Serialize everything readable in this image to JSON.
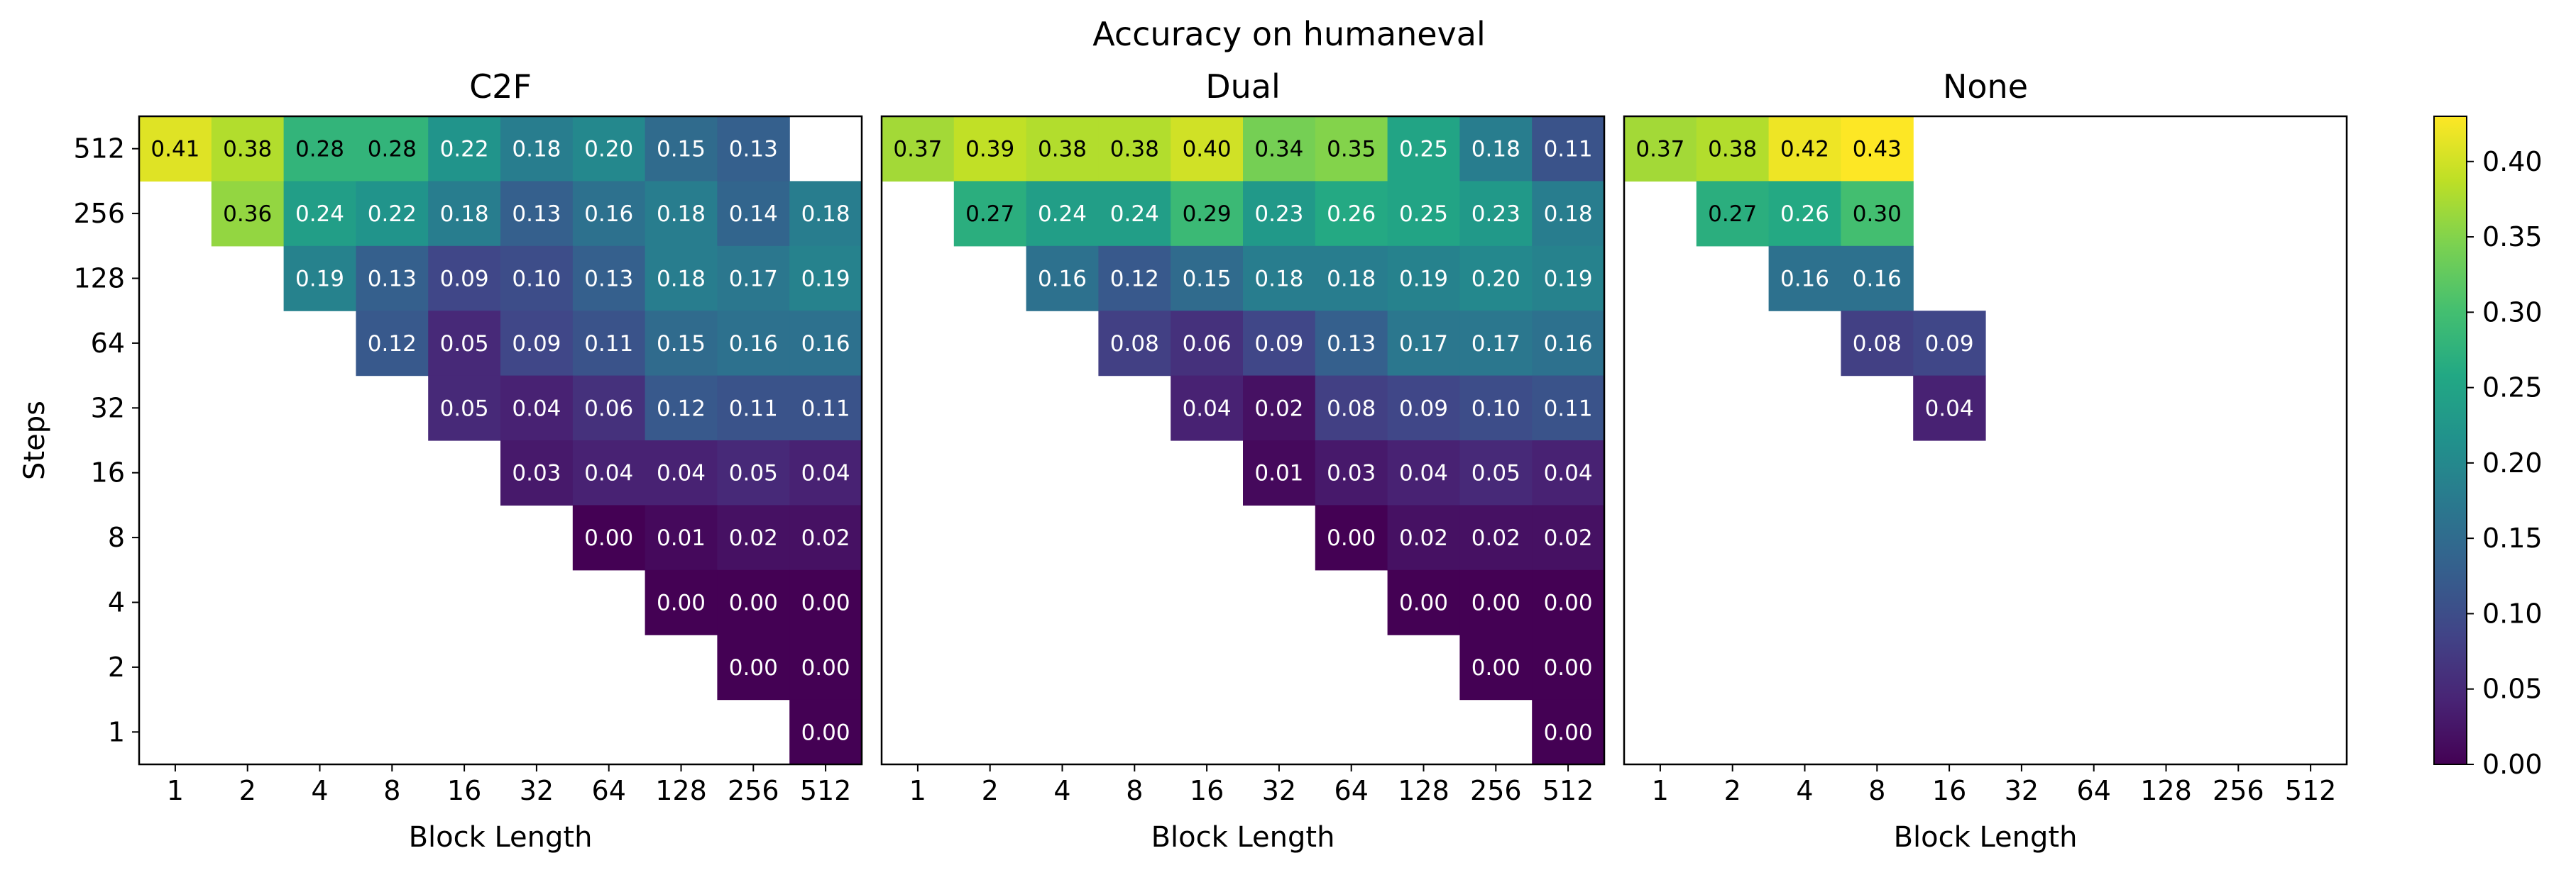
{
  "figure": {
    "title": "Accuracy on humaneval"
  },
  "chart_data": [
    {
      "type": "heatmap",
      "title": "C2F",
      "xlabel": "Block Length",
      "ylabel": "Steps",
      "x_categories": [
        "1",
        "2",
        "4",
        "8",
        "16",
        "32",
        "64",
        "128",
        "256",
        "512"
      ],
      "y_categories": [
        "512",
        "256",
        "128",
        "64",
        "32",
        "16",
        "8",
        "4",
        "2",
        "1"
      ],
      "values": [
        [
          0.41,
          0.38,
          0.28,
          0.28,
          0.22,
          0.18,
          0.2,
          0.15,
          0.13,
          null
        ],
        [
          null,
          0.36,
          0.24,
          0.22,
          0.18,
          0.13,
          0.16,
          0.18,
          0.14,
          0.18
        ],
        [
          null,
          null,
          0.19,
          0.13,
          0.09,
          0.1,
          0.13,
          0.18,
          0.17,
          0.19
        ],
        [
          null,
          null,
          null,
          0.12,
          0.05,
          0.09,
          0.11,
          0.15,
          0.16,
          0.16
        ],
        [
          null,
          null,
          null,
          null,
          0.05,
          0.04,
          0.06,
          0.12,
          0.11,
          0.11
        ],
        [
          null,
          null,
          null,
          null,
          null,
          0.03,
          0.04,
          0.04,
          0.05,
          0.04
        ],
        [
          null,
          null,
          null,
          null,
          null,
          null,
          0.0,
          0.01,
          0.02,
          0.02
        ],
        [
          null,
          null,
          null,
          null,
          null,
          null,
          null,
          0.0,
          0.0,
          0.0
        ],
        [
          null,
          null,
          null,
          null,
          null,
          null,
          null,
          null,
          0.0,
          0.0
        ],
        [
          null,
          null,
          null,
          null,
          null,
          null,
          null,
          null,
          null,
          0.0
        ]
      ],
      "value_format": "2 decimals",
      "colormap": "viridis",
      "vmin": 0.0,
      "vmax": 0.43
    },
    {
      "type": "heatmap",
      "title": "Dual",
      "xlabel": "Block Length",
      "ylabel": "",
      "x_categories": [
        "1",
        "2",
        "4",
        "8",
        "16",
        "32",
        "64",
        "128",
        "256",
        "512"
      ],
      "y_categories": [
        "512",
        "256",
        "128",
        "64",
        "32",
        "16",
        "8",
        "4",
        "2",
        "1"
      ],
      "values": [
        [
          0.37,
          0.39,
          0.38,
          0.38,
          0.4,
          0.34,
          0.35,
          0.25,
          0.18,
          0.11
        ],
        [
          null,
          0.27,
          0.24,
          0.24,
          0.29,
          0.23,
          0.26,
          0.25,
          0.23,
          0.18
        ],
        [
          null,
          null,
          0.16,
          0.12,
          0.15,
          0.18,
          0.18,
          0.19,
          0.2,
          0.19
        ],
        [
          null,
          null,
          null,
          0.08,
          0.06,
          0.09,
          0.13,
          0.17,
          0.17,
          0.16
        ],
        [
          null,
          null,
          null,
          null,
          0.04,
          0.02,
          0.08,
          0.09,
          0.1,
          0.11
        ],
        [
          null,
          null,
          null,
          null,
          null,
          0.01,
          0.03,
          0.04,
          0.05,
          0.04
        ],
        [
          null,
          null,
          null,
          null,
          null,
          null,
          0.0,
          0.02,
          0.02,
          0.02
        ],
        [
          null,
          null,
          null,
          null,
          null,
          null,
          null,
          0.0,
          0.0,
          0.0
        ],
        [
          null,
          null,
          null,
          null,
          null,
          null,
          null,
          null,
          0.0,
          0.0
        ],
        [
          null,
          null,
          null,
          null,
          null,
          null,
          null,
          null,
          null,
          0.0
        ]
      ],
      "value_format": "2 decimals",
      "colormap": "viridis",
      "vmin": 0.0,
      "vmax": 0.43
    },
    {
      "type": "heatmap",
      "title": "None",
      "xlabel": "Block Length",
      "ylabel": "",
      "x_categories": [
        "1",
        "2",
        "4",
        "8",
        "16",
        "32",
        "64",
        "128",
        "256",
        "512"
      ],
      "y_categories": [
        "512",
        "256",
        "128",
        "64",
        "32",
        "16",
        "8",
        "4",
        "2",
        "1"
      ],
      "values": [
        [
          0.37,
          0.38,
          0.42,
          0.43,
          null,
          null,
          null,
          null,
          null,
          null
        ],
        [
          null,
          0.27,
          0.26,
          0.3,
          null,
          null,
          null,
          null,
          null,
          null
        ],
        [
          null,
          null,
          0.16,
          0.16,
          null,
          null,
          null,
          null,
          null,
          null
        ],
        [
          null,
          null,
          null,
          0.08,
          0.09,
          null,
          null,
          null,
          null,
          null
        ],
        [
          null,
          null,
          null,
          null,
          0.04,
          null,
          null,
          null,
          null,
          null
        ],
        [
          null,
          null,
          null,
          null,
          null,
          null,
          null,
          null,
          null,
          null
        ],
        [
          null,
          null,
          null,
          null,
          null,
          null,
          null,
          null,
          null,
          null
        ],
        [
          null,
          null,
          null,
          null,
          null,
          null,
          null,
          null,
          null,
          null
        ],
        [
          null,
          null,
          null,
          null,
          null,
          null,
          null,
          null,
          null,
          null
        ],
        [
          null,
          null,
          null,
          null,
          null,
          null,
          null,
          null,
          null,
          null
        ]
      ],
      "value_format": "2 decimals",
      "colormap": "viridis",
      "vmin": 0.0,
      "vmax": 0.43
    }
  ],
  "colorbar": {
    "ticks": [
      "0.00",
      "0.05",
      "0.10",
      "0.15",
      "0.20",
      "0.25",
      "0.30",
      "0.35",
      "0.40"
    ],
    "vmin": 0.0,
    "vmax": 0.43
  }
}
